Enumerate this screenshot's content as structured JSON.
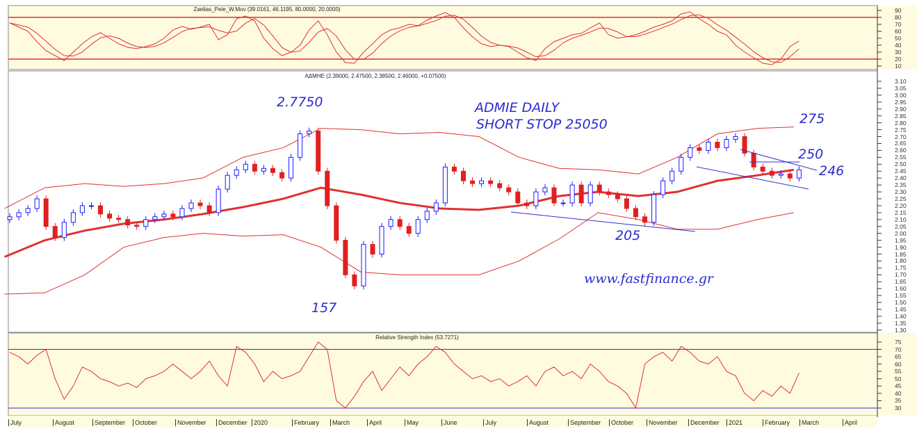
{
  "chart_data": [
    {
      "type": "line",
      "panel": "oscillator",
      "title": "Zaelias_Pele_W.Mov (39.0161, 46.1195, 80.0000, 20.0000)",
      "y_ticks": [
        90,
        80,
        70,
        60,
        50,
        40,
        30,
        20,
        10
      ],
      "ylim": [
        5,
        95
      ],
      "levels": [
        80,
        20
      ],
      "colors": {
        "line": "#e03030",
        "level": "#e03030",
        "bg": "#fffbe0"
      },
      "values": [
        72,
        66,
        60,
        45,
        32,
        25,
        18,
        30,
        42,
        52,
        58,
        50,
        42,
        37,
        35,
        38,
        42,
        50,
        62,
        67,
        63,
        66,
        70,
        48,
        55,
        78,
        82,
        75,
        50,
        35,
        25,
        30,
        40,
        62,
        75,
        55,
        30,
        15,
        14,
        30,
        42,
        55,
        62,
        65,
        70,
        68,
        76,
        82,
        87,
        80,
        65,
        52,
        42,
        38,
        40,
        38,
        30,
        22,
        18,
        35,
        45,
        50,
        55,
        57,
        65,
        72,
        55,
        50,
        52,
        55,
        60,
        66,
        70,
        75,
        85,
        88,
        78,
        70,
        60,
        55,
        40,
        30,
        22,
        14,
        12,
        20,
        38,
        46
      ]
    },
    {
      "type": "candlestick",
      "panel": "price",
      "title": "ΑΔΜΗΕ (2.39000, 2.47500, 2.38500, 2.46000, +0.07500)",
      "y_ticks": [
        "3.10",
        "3.05",
        "3.00",
        "2.95",
        "2.90",
        "2.85",
        "2.80",
        "2.75",
        "2.70",
        "2.65",
        "2.60",
        "2.55",
        "2.50",
        "2.45",
        "2.40",
        "2.35",
        "2.30",
        "2.25",
        "2.20",
        "2.15",
        "2.10",
        "2.05",
        "2.00",
        "1.95",
        "1.90",
        "1.85",
        "1.80",
        "1.75",
        "1.70",
        "1.65",
        "1.60",
        "1.55",
        "1.50",
        "1.45",
        "1.40",
        "1.35",
        "1.30"
      ],
      "ylim": [
        1.3,
        3.1
      ],
      "colors": {
        "up": "#1a1aff",
        "down": "#e02020",
        "ma": "#e01010",
        "band": "#e03030",
        "trendline": "#3030d0"
      },
      "dates": [
        "2019-07-05",
        "2019-07-12",
        "2019-07-19",
        "2019-07-26",
        "2019-08-02",
        "2019-08-09",
        "2019-08-16",
        "2019-08-23",
        "2019-08-30",
        "2019-09-06",
        "2019-09-13",
        "2019-09-20",
        "2019-09-27",
        "2019-10-04",
        "2019-10-11",
        "2019-10-18",
        "2019-10-25",
        "2019-11-01",
        "2019-11-08",
        "2019-11-15",
        "2019-11-22",
        "2019-11-29",
        "2019-12-06",
        "2019-12-13",
        "2019-12-20",
        "2019-12-27",
        "2020-01-03",
        "2020-01-10",
        "2020-01-17",
        "2020-01-24",
        "2020-01-31",
        "2020-02-07",
        "2020-02-14",
        "2020-02-21",
        "2020-02-28",
        "2020-03-06",
        "2020-03-13",
        "2020-03-20",
        "2020-03-27",
        "2020-04-03",
        "2020-04-10",
        "2020-04-17",
        "2020-04-24",
        "2020-05-01",
        "2020-05-08",
        "2020-05-15",
        "2020-05-22",
        "2020-05-29",
        "2020-06-05",
        "2020-06-12",
        "2020-06-19",
        "2020-06-26",
        "2020-07-03",
        "2020-07-10",
        "2020-07-17",
        "2020-07-24",
        "2020-07-31",
        "2020-08-07",
        "2020-08-14",
        "2020-08-21",
        "2020-08-28",
        "2020-09-04",
        "2020-09-11",
        "2020-09-18",
        "2020-09-25",
        "2020-10-02",
        "2020-10-09",
        "2020-10-16",
        "2020-10-23",
        "2020-10-30",
        "2020-11-06",
        "2020-11-13",
        "2020-11-20",
        "2020-11-27",
        "2020-12-04",
        "2020-12-11",
        "2020-12-18",
        "2020-12-25",
        "2021-01-01",
        "2021-01-08",
        "2021-01-15",
        "2021-01-22",
        "2021-01-29",
        "2021-02-05",
        "2021-02-12",
        "2021-02-19",
        "2021-02-26",
        "2021-03-05"
      ],
      "close": [
        2.12,
        2.15,
        2.18,
        2.25,
        2.05,
        1.97,
        2.08,
        2.15,
        2.2,
        2.2,
        2.14,
        2.11,
        2.1,
        2.06,
        2.05,
        2.1,
        2.12,
        2.14,
        2.12,
        2.18,
        2.22,
        2.2,
        2.15,
        2.32,
        2.42,
        2.46,
        2.5,
        2.45,
        2.47,
        2.44,
        2.4,
        2.55,
        2.72,
        2.74,
        2.45,
        2.2,
        1.95,
        1.7,
        1.62,
        1.92,
        1.85,
        2.05,
        2.1,
        2.05,
        2.0,
        2.1,
        2.16,
        2.22,
        2.48,
        2.45,
        2.38,
        2.36,
        2.38,
        2.36,
        2.33,
        2.3,
        2.22,
        2.2,
        2.3,
        2.33,
        2.22,
        2.22,
        2.35,
        2.22,
        2.35,
        2.3,
        2.28,
        2.25,
        2.18,
        2.12,
        2.08,
        2.28,
        2.38,
        2.45,
        2.55,
        2.62,
        2.6,
        2.66,
        2.62,
        2.68,
        2.7,
        2.58,
        2.48,
        2.45,
        2.42,
        2.43,
        2.4,
        2.46
      ],
      "ma": {
        "dates": [
          "2019-07-01",
          "2019-08-01",
          "2019-09-01",
          "2019-10-01",
          "2019-11-01",
          "2019-12-01",
          "2020-01-01",
          "2020-02-01",
          "2020-03-01",
          "2020-04-01",
          "2020-05-01",
          "2020-06-01",
          "2020-07-01",
          "2020-08-01",
          "2020-09-01",
          "2020-10-01",
          "2020-11-01",
          "2020-12-01",
          "2021-01-01",
          "2021-02-01",
          "2021-03-01"
        ],
        "values": [
          1.83,
          1.95,
          2.02,
          2.07,
          2.1,
          2.14,
          2.19,
          2.25,
          2.33,
          2.28,
          2.22,
          2.18,
          2.17,
          2.2,
          2.27,
          2.3,
          2.27,
          2.3,
          2.38,
          2.42,
          2.46
        ],
        "upper": [
          2.18,
          2.33,
          2.36,
          2.34,
          2.36,
          2.4,
          2.55,
          2.62,
          2.76,
          2.75,
          2.72,
          2.73,
          2.7,
          2.55,
          2.47,
          2.46,
          2.43,
          2.55,
          2.72,
          2.76,
          2.77
        ],
        "lower": [
          1.56,
          1.57,
          1.7,
          1.9,
          1.97,
          2.0,
          1.98,
          1.99,
          1.9,
          1.72,
          1.7,
          1.7,
          1.7,
          1.8,
          1.96,
          2.15,
          2.1,
          2.03,
          2.03,
          2.1,
          2.15
        ]
      }
    },
    {
      "type": "line",
      "panel": "rsi",
      "title": "Relative Strength Index (53.7271)",
      "y_ticks": [
        75,
        70,
        65,
        60,
        55,
        50,
        45,
        40,
        35,
        30
      ],
      "ylim": [
        25,
        80
      ],
      "levels": [
        70,
        30
      ],
      "colors": {
        "line": "#e03030",
        "level": "#3030d0",
        "bg": "#fffbe0"
      },
      "values": [
        68,
        65,
        60,
        66,
        70,
        50,
        36,
        45,
        58,
        55,
        50,
        48,
        45,
        47,
        44,
        50,
        52,
        55,
        60,
        55,
        50,
        55,
        62,
        52,
        45,
        72,
        68,
        60,
        48,
        55,
        50,
        52,
        55,
        65,
        75,
        70,
        35,
        30,
        38,
        48,
        55,
        42,
        50,
        58,
        52,
        60,
        65,
        72,
        68,
        60,
        55,
        50,
        52,
        48,
        50,
        45,
        48,
        52,
        45,
        55,
        58,
        52,
        55,
        50,
        60,
        55,
        48,
        45,
        40,
        30,
        60,
        65,
        68,
        62,
        72,
        68,
        62,
        60,
        65,
        55,
        52,
        40,
        35,
        42,
        38,
        45,
        40,
        54
      ]
    }
  ],
  "x_axis": {
    "labels": [
      "July",
      "August",
      "September",
      "October",
      "November",
      "December",
      "2020",
      "February",
      "March",
      "April",
      "May",
      "June",
      "July",
      "August",
      "September",
      "October",
      "November",
      "December",
      "2021",
      "February",
      "March",
      "April"
    ]
  },
  "annotations": {
    "high": "2.7750",
    "title_line1": "ADMIE DAILY",
    "title_line2": "SHORT STOP 25050",
    "r275": "275",
    "r250": "250",
    "r246": "246",
    "s205": "205",
    "low": "157",
    "website": "www.fastfinance.gr"
  }
}
